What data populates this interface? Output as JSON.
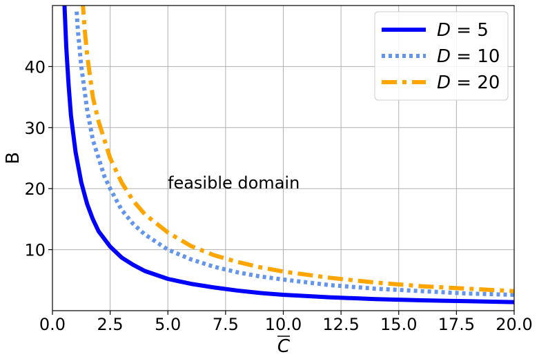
{
  "chart_data": {
    "type": "line",
    "xlabel": "C",
    "xlabel_overline": true,
    "ylabel": "B",
    "xlim": [
      0,
      20
    ],
    "ylim": [
      0,
      50
    ],
    "xticks": [
      "0.0",
      "2.5",
      "5.0",
      "7.5",
      "10.0",
      "12.5",
      "15.0",
      "17.5",
      "20.0"
    ],
    "yticks": [
      "10",
      "20",
      "30",
      "40"
    ],
    "grid": true,
    "legend": "top-right",
    "annotation": "feasible domain",
    "series": [
      {
        "name": "D = 5",
        "legend_var": "D",
        "legend_val": "= 5",
        "color": "#0000ff",
        "style": "solid",
        "x": [
          0.5,
          0.6,
          0.7,
          0.8,
          0.9,
          1.0,
          1.25,
          1.5,
          1.75,
          2.0,
          2.5,
          3.0,
          3.5,
          4.0,
          5.0,
          6.0,
          7.0,
          8.0,
          9.0,
          10.0,
          12.0,
          14.0,
          16.0,
          18.0,
          20.0
        ],
        "y": [
          52,
          43,
          37,
          32,
          29,
          26,
          21,
          17.5,
          15,
          13,
          10.5,
          8.7,
          7.5,
          6.5,
          5.2,
          4.4,
          3.8,
          3.3,
          2.9,
          2.6,
          2.2,
          1.9,
          1.7,
          1.55,
          1.4
        ]
      },
      {
        "name": "D = 10",
        "legend_var": "D",
        "legend_val": "= 10",
        "color": "#6495ed",
        "style": "dotted",
        "x": [
          1.05,
          1.1,
          1.25,
          1.5,
          1.75,
          2.0,
          2.25,
          2.5,
          3.0,
          3.5,
          4.0,
          5.0,
          6.0,
          7.0,
          8.0,
          9.0,
          10.0,
          12.0,
          14.0,
          16.0,
          18.0,
          20.0
        ],
        "y": [
          49,
          46,
          40,
          33,
          28,
          25,
          22,
          20,
          16.5,
          14.2,
          12.5,
          10,
          8.4,
          7.2,
          6.3,
          5.6,
          5.1,
          4.2,
          3.6,
          3.2,
          2.8,
          2.6
        ]
      },
      {
        "name": "D = 20",
        "legend_var": "D",
        "legend_val": "= 20",
        "color": "#ffa500",
        "style": "dashdot",
        "x": [
          1.3,
          1.4,
          1.5,
          1.75,
          2.0,
          2.25,
          2.5,
          3.0,
          3.5,
          4.0,
          5.0,
          6.0,
          7.0,
          8.0,
          9.0,
          10.0,
          12.0,
          14.0,
          16.0,
          18.0,
          20.0
        ],
        "y": [
          51,
          46,
          42,
          35,
          31,
          28,
          25,
          21,
          18,
          15.8,
          12.8,
          10.6,
          9.1,
          8.0,
          7.1,
          6.4,
          5.4,
          4.6,
          4.0,
          3.6,
          3.2
        ]
      }
    ]
  }
}
